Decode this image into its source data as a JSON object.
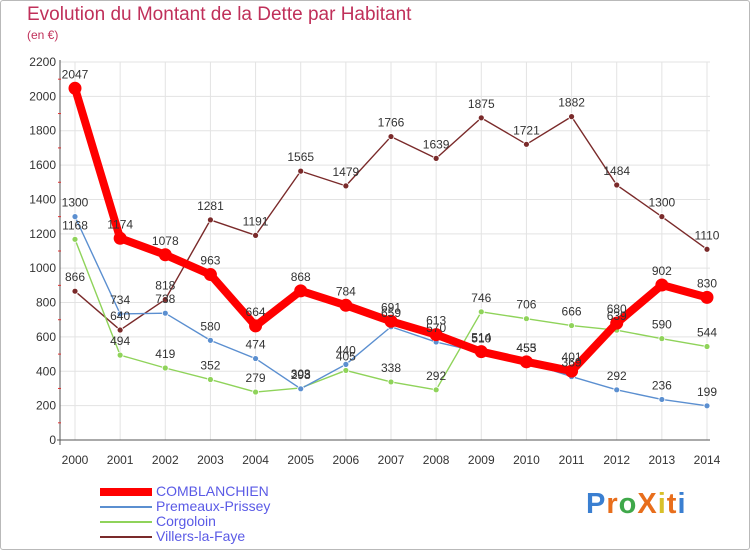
{
  "header": {
    "title": "Evolution du Montant de la Dette par Habitant",
    "subtitle": "(en €)"
  },
  "logo": {
    "text": "ProXiti",
    "colors": [
      "#3a7fd1",
      "#e86e1c",
      "#3fa84a",
      "#e86e1c",
      "#d8c02a",
      "#e86e1c",
      "#3a7fd1"
    ]
  },
  "chart_data": {
    "type": "line",
    "x": [
      2000,
      2001,
      2002,
      2003,
      2004,
      2005,
      2006,
      2007,
      2008,
      2009,
      2010,
      2011,
      2012,
      2013,
      2014
    ],
    "ylim": [
      0,
      2200
    ],
    "yticks": [
      0,
      200,
      400,
      600,
      800,
      1000,
      1200,
      1400,
      1600,
      1800,
      2000,
      2200
    ],
    "grid": true,
    "legend": "bottom-left",
    "series": [
      {
        "name": "COMBLANCHIEN",
        "color": "#ff0000",
        "values": [
          2047,
          1174,
          1078,
          963,
          664,
          868,
          784,
          691,
          613,
          514,
          455,
          401,
          680,
          902,
          830
        ]
      },
      {
        "name": "Premeaux-Prissey",
        "color": "#5b8fd0",
        "values": [
          1300,
          734,
          738,
          580,
          474,
          298,
          440,
          659,
          570,
          510,
          453,
          369,
          292,
          236,
          199
        ]
      },
      {
        "name": "Corgoloin",
        "color": "#8fd35a",
        "values": [
          1168,
          494,
          419,
          352,
          279,
          303,
          405,
          338,
          292,
          746,
          706,
          666,
          639,
          590,
          544
        ]
      },
      {
        "name": "Villers-la-Faye",
        "color": "#7a2a2a",
        "values": [
          866,
          640,
          818,
          1281,
          1191,
          1565,
          1479,
          1766,
          1639,
          1875,
          1721,
          1882,
          1484,
          1300,
          1110
        ]
      }
    ]
  }
}
